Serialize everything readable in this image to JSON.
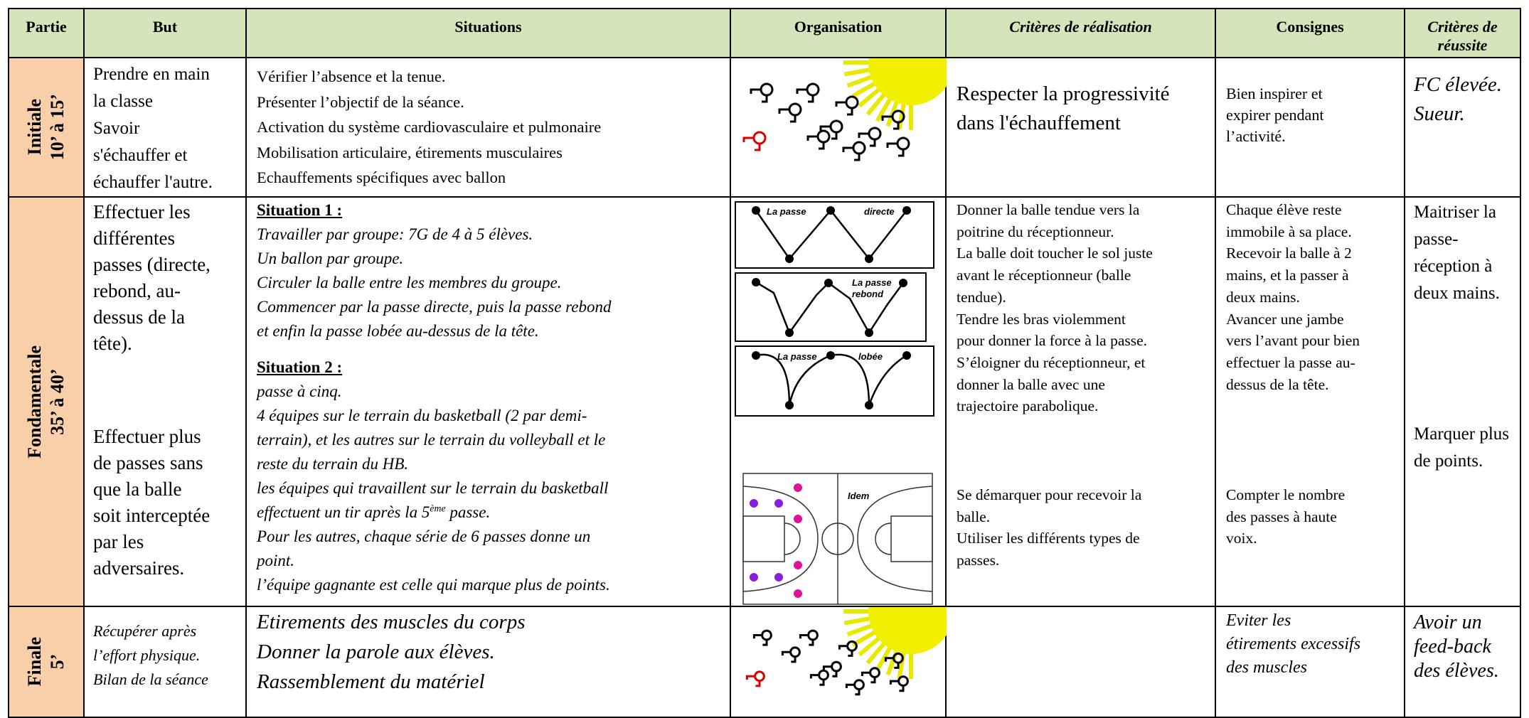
{
  "header": [
    "Partie",
    "But",
    "Situations",
    "Organisation",
    "Critères de réalisation",
    "Consignes",
    "Critères de réussite"
  ],
  "rows": [
    {
      "partie": [
        "Initiale",
        "10’ à 15’"
      ],
      "but": [
        [
          "Prendre en main",
          "la classe",
          "Savoir",
          "s'échauffer et",
          "échauffer l'autre."
        ]
      ],
      "situations": [
        [
          "Vérifier l’absence et la tenue.",
          "Présenter l’objectif de la séance.",
          "Activation du système cardiovasculaire et pulmonaire",
          "Mobilisation articulaire, étirements musculaires",
          "Echauffements spécifiques avec ballon"
        ]
      ],
      "criteres": [
        [
          "Respecter la progressivité",
          "dans l'échauffement"
        ]
      ],
      "consignes": [
        [
          "Bien inspirer et",
          "expirer pendant",
          "l’activité."
        ]
      ],
      "reussite": [
        [
          "FC élevée.",
          "Sueur."
        ]
      ]
    },
    {
      "partie": [
        "Fondamentale",
        "35’ à 40’"
      ],
      "but": [
        [
          "Effectuer les",
          "différentes",
          "passes (directe,",
          "rebond, au-",
          "dessus de la",
          "tête)."
        ],
        [
          "Effectuer plus",
          "de passes sans",
          "que la balle",
          "soit interceptée",
          "par les",
          "adversaires."
        ]
      ],
      "situations": [
        {
          "heading": "Situation 1 :",
          "lines": [
            "Travailler par groupe: 7G de 4 à 5 élèves.",
            "Un ballon par groupe.",
            "Circuler la balle entre les membres du groupe.",
            "Commencer par la passe directe, puis la passe rebond",
            "et enfin la passe lobée au-dessus de la tête."
          ]
        },
        {
          "heading": "Situation 2 :",
          "lines": [
            "passe à cinq.",
            "4 équipes sur le terrain du basketball (2 par demi-",
            "terrain), et les autres sur le terrain du volleyball et le",
            "reste du terrain du HB.",
            "les équipes qui travaillent sur le terrain du basketball",
            {
              "text": "effectuent un tir après la 5",
              "sup": "ème",
              "tail": " passe."
            },
            "Pour les autres, chaque série de 6 passes donne un",
            "point.",
            "l’équipe gagnante est celle qui marque plus de points."
          ]
        }
      ],
      "organisation": [
        [
          "La passe",
          "directe"
        ],
        [
          "La passe",
          "rebond"
        ],
        [
          "La passe",
          "lobée"
        ],
        [
          "Idem"
        ]
      ],
      "criteres": [
        [
          "Donner la balle tendue vers la",
          "poitrine du réceptionneur.",
          " La balle doit toucher le sol juste",
          "avant le réceptionneur (balle",
          "tendue).",
          "Tendre les bras violemment",
          "pour donner la force à la passe.",
          "S’éloigner du réceptionneur, et",
          "donner la balle avec une",
          "trajectoire parabolique."
        ],
        [
          "Se démarquer pour recevoir la",
          "balle.",
          "Utiliser les différents types de",
          "passes."
        ]
      ],
      "consignes": [
        [
          "Chaque élève reste",
          "immobile à sa place.",
          "Recevoir la balle à 2",
          "mains, et la passer à",
          "deux mains.",
          "Avancer une jambe",
          "vers l’avant pour bien",
          "effectuer la passe au-",
          "dessus de la tête."
        ],
        [
          "Compter le nombre",
          "des passes à haute",
          "voix."
        ]
      ],
      "reussite": [
        [
          "Maitriser la",
          "passe-",
          "réception à",
          "deux mains."
        ],
        [
          "Marquer plus",
          "de points."
        ]
      ]
    },
    {
      "partie": [
        "Finale",
        "5’"
      ],
      "but": [
        [
          "Récupérer après",
          "l’effort physique.",
          "Bilan de la séance"
        ]
      ],
      "situations": [
        [
          "Etirements des muscles du corps",
          "Donner la parole aux élèves.",
          "Rassemblement du matériel"
        ]
      ],
      "criteres": [],
      "consignes": [
        [
          "Eviter les",
          "étirements excessifs",
          "des muscles"
        ]
      ],
      "reussite": [
        [
          "Avoir  un",
          "feed-back",
          "des élèves."
        ]
      ]
    }
  ]
}
